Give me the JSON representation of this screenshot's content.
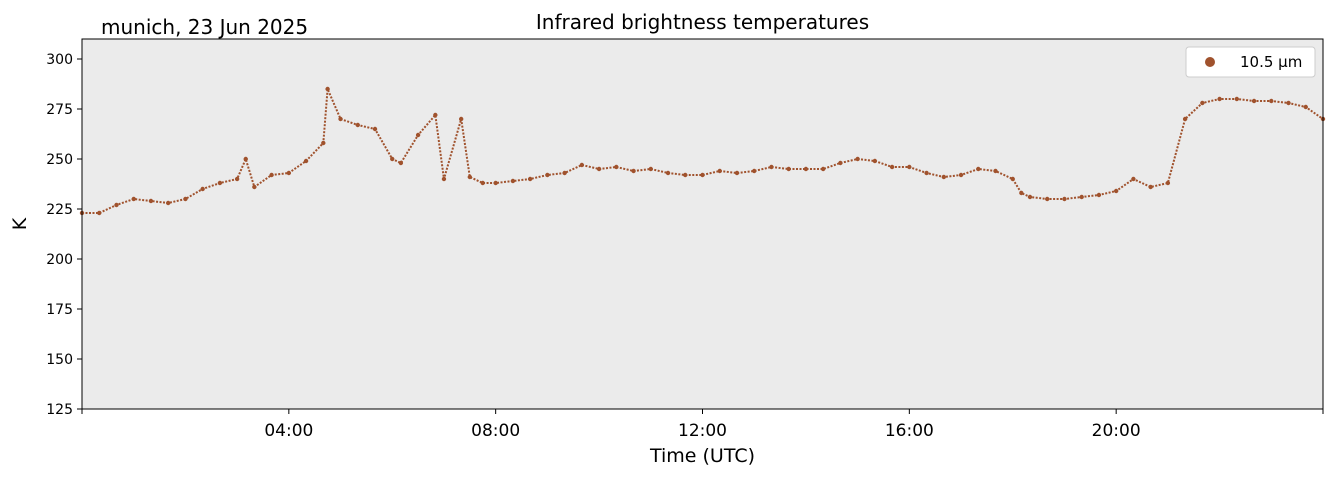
{
  "chart_data": {
    "type": "scatter",
    "title": "Infrared brightness temperatures",
    "subtitle": "munich, 23 Jun 2025",
    "xlabel": "Time (UTC)",
    "ylabel": "K",
    "xlim": [
      "00:00",
      "24:00"
    ],
    "ylim": [
      125,
      310
    ],
    "xticks": [
      "04:00",
      "08:00",
      "12:00",
      "16:00",
      "20:00"
    ],
    "yticks": [
      125,
      150,
      175,
      200,
      225,
      250,
      275,
      300
    ],
    "grid": false,
    "legend_position": "top-right",
    "background_color": "#ebebeb",
    "series": [
      {
        "name": "10.5 µm",
        "color": "#a0522d",
        "x": [
          "00:00",
          "00:20",
          "00:40",
          "01:00",
          "01:20",
          "01:40",
          "02:00",
          "02:20",
          "02:40",
          "03:00",
          "03:10",
          "03:20",
          "03:40",
          "04:00",
          "04:20",
          "04:40",
          "04:45",
          "05:00",
          "05:20",
          "05:40",
          "06:00",
          "06:10",
          "06:30",
          "06:50",
          "07:00",
          "07:20",
          "07:30",
          "07:45",
          "08:00",
          "08:20",
          "08:40",
          "09:00",
          "09:20",
          "09:40",
          "10:00",
          "10:20",
          "10:40",
          "11:00",
          "11:20",
          "11:40",
          "12:00",
          "12:20",
          "12:40",
          "13:00",
          "13:20",
          "13:40",
          "14:00",
          "14:20",
          "14:40",
          "15:00",
          "15:20",
          "15:40",
          "16:00",
          "16:20",
          "16:40",
          "17:00",
          "17:20",
          "17:40",
          "18:00",
          "18:10",
          "18:20",
          "18:40",
          "19:00",
          "19:20",
          "19:40",
          "20:00",
          "20:20",
          "20:40",
          "21:00",
          "21:20",
          "21:40",
          "22:00",
          "22:20",
          "22:40",
          "23:00",
          "23:20",
          "23:40",
          "24:00"
        ],
        "y": [
          223,
          223,
          227,
          230,
          229,
          228,
          230,
          235,
          238,
          240,
          250,
          236,
          242,
          243,
          249,
          258,
          285,
          270,
          267,
          265,
          250,
          248,
          262,
          272,
          240,
          270,
          241,
          238,
          238,
          239,
          240,
          242,
          243,
          247,
          245,
          246,
          244,
          245,
          243,
          242,
          242,
          244,
          243,
          244,
          246,
          245,
          245,
          245,
          248,
          250,
          249,
          246,
          246,
          243,
          241,
          242,
          245,
          244,
          240,
          233,
          231,
          230,
          230,
          231,
          232,
          234,
          240,
          236,
          238,
          270,
          278,
          280,
          280,
          279,
          279,
          278,
          276,
          270
        ]
      }
    ]
  }
}
